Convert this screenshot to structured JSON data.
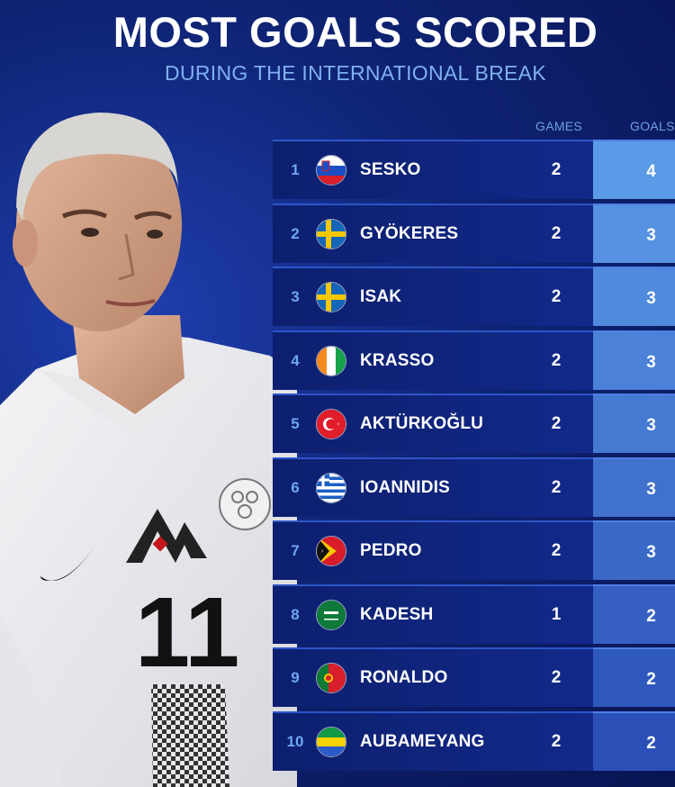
{
  "header": {
    "title": "MOST GOALS SCORED",
    "subtitle": "DURING THE INTERNATIONAL BREAK"
  },
  "columns": {
    "games": "GAMES",
    "goals": "GOALS"
  },
  "colors": {
    "background": "#0f2475",
    "row": "#12298a",
    "goals_top": "#5b9ae6",
    "goals_bottom": "#2a50b8",
    "rank": "#6fa6f2"
  },
  "player_jersey": {
    "number": "11"
  },
  "rows": [
    {
      "rank": "1",
      "name": "SESKO",
      "games": "2",
      "goals": "4",
      "flag": "slovenia-flag-icon"
    },
    {
      "rank": "2",
      "name": "GYÖKERES",
      "games": "2",
      "goals": "3",
      "flag": "sweden-flag-icon"
    },
    {
      "rank": "3",
      "name": "ISAK",
      "games": "2",
      "goals": "3",
      "flag": "sweden-flag-icon"
    },
    {
      "rank": "4",
      "name": "KRASSO",
      "games": "2",
      "goals": "3",
      "flag": "ivory-coast-flag-icon"
    },
    {
      "rank": "5",
      "name": "AKTÜRKOĞLU",
      "games": "2",
      "goals": "3",
      "flag": "turkey-flag-icon"
    },
    {
      "rank": "6",
      "name": "IOANNIDIS",
      "games": "2",
      "goals": "3",
      "flag": "greece-flag-icon"
    },
    {
      "rank": "7",
      "name": "PEDRO",
      "games": "2",
      "goals": "3",
      "flag": "timor-leste-flag-icon"
    },
    {
      "rank": "8",
      "name": "KADESH",
      "games": "1",
      "goals": "2",
      "flag": "saudi-arabia-flag-icon"
    },
    {
      "rank": "9",
      "name": "RONALDO",
      "games": "2",
      "goals": "2",
      "flag": "portugal-flag-icon"
    },
    {
      "rank": "10",
      "name": "AUBAMEYANG",
      "games": "2",
      "goals": "2",
      "flag": "gabon-flag-icon"
    }
  ]
}
